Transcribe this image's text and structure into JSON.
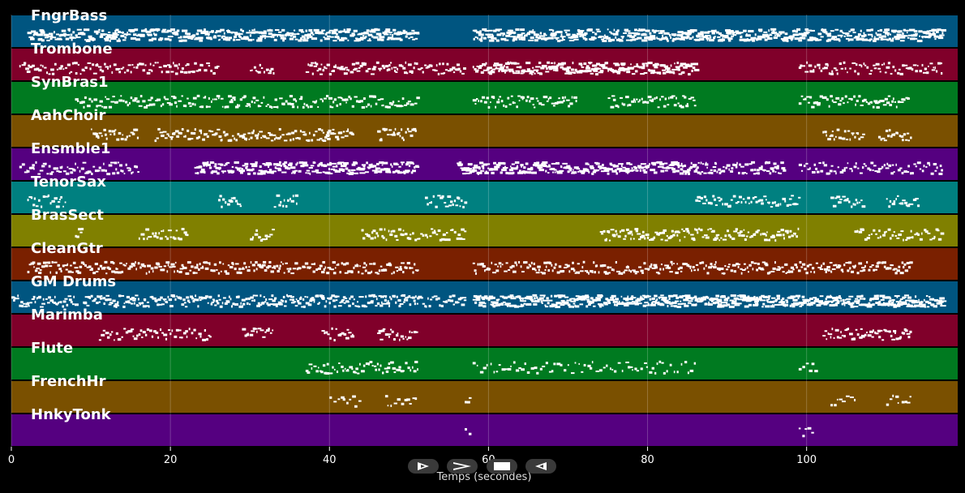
{
  "chart_data": {
    "type": "piano-roll",
    "xlabel": "Temps (secondes)",
    "xlim": [
      0,
      119
    ],
    "xticks": [
      0,
      20,
      40,
      60,
      80,
      100
    ],
    "grid": true,
    "tracks": [
      {
        "name": "FngrBass",
        "color": "#005580",
        "segments": [
          [
            2,
            51,
            9
          ],
          [
            58,
            117,
            10
          ]
        ]
      },
      {
        "name": "Trombone",
        "color": "#80002a",
        "segments": [
          [
            1,
            26,
            5
          ],
          [
            30,
            33,
            5
          ],
          [
            37,
            57,
            6
          ],
          [
            58,
            86,
            9
          ],
          [
            99,
            117,
            5
          ]
        ]
      },
      {
        "name": "SynBras1",
        "color": "#007a20",
        "segments": [
          [
            8,
            51,
            5
          ],
          [
            58,
            71,
            5
          ],
          [
            75,
            86,
            5
          ],
          [
            99,
            113,
            5
          ]
        ]
      },
      {
        "name": "AahChoir",
        "color": "#7a5000",
        "segments": [
          [
            10,
            16,
            5
          ],
          [
            18,
            40,
            6
          ],
          [
            39,
            43,
            6
          ],
          [
            46,
            51,
            6
          ],
          [
            102,
            107,
            6
          ],
          [
            109,
            113,
            6
          ]
        ]
      },
      {
        "name": "Ensmble1",
        "color": "#550080",
        "segments": [
          [
            1,
            16,
            5
          ],
          [
            23,
            51,
            9
          ],
          [
            56,
            86,
            9
          ],
          [
            86,
            97,
            8
          ],
          [
            99,
            117,
            5
          ]
        ]
      },
      {
        "name": "TenorSax",
        "color": "#008080",
        "segments": [
          [
            2,
            7,
            5
          ],
          [
            26,
            29,
            5
          ],
          [
            33,
            36,
            5
          ],
          [
            52,
            57,
            5
          ],
          [
            86,
            99,
            5
          ],
          [
            103,
            107,
            5
          ],
          [
            110,
            114,
            5
          ]
        ]
      },
      {
        "name": "BrasSect",
        "color": "#808000",
        "segments": [
          [
            8,
            9,
            5
          ],
          [
            16,
            22,
            5
          ],
          [
            30,
            33,
            5
          ],
          [
            44,
            57,
            5
          ],
          [
            74,
            99,
            6
          ],
          [
            106,
            117,
            5
          ]
        ]
      },
      {
        "name": "CleanGtr",
        "color": "#7a2000",
        "segments": [
          [
            2,
            51,
            6
          ],
          [
            58,
            113,
            6
          ]
        ]
      },
      {
        "name": "GM Drums",
        "color": "#005580",
        "segments": [
          [
            0,
            8,
            7
          ],
          [
            9,
            51,
            8
          ],
          [
            51,
            57,
            6
          ],
          [
            58,
            117,
            11
          ]
        ]
      },
      {
        "name": "Marimba",
        "color": "#80002a",
        "segments": [
          [
            11,
            25,
            5
          ],
          [
            29,
            33,
            5
          ],
          [
            39,
            43,
            5
          ],
          [
            46,
            51,
            5
          ],
          [
            102,
            113,
            6
          ]
        ]
      },
      {
        "name": "Flute",
        "color": "#007a20",
        "segments": [
          [
            37,
            51,
            5
          ],
          [
            58,
            86,
            3
          ],
          [
            99,
            101,
            3
          ]
        ]
      },
      {
        "name": "FrenchHr",
        "color": "#7a5000",
        "segments": [
          [
            40,
            44,
            3
          ],
          [
            47,
            51,
            3
          ],
          [
            57,
            58,
            3
          ],
          [
            103,
            106,
            3
          ],
          [
            110,
            113,
            3
          ]
        ]
      },
      {
        "name": "HnkyTonk",
        "color": "#550080",
        "segments": [
          [
            57,
            58,
            3
          ],
          [
            99,
            101,
            3
          ]
        ]
      }
    ]
  },
  "transport": {
    "play_icon": "play-outline-icon",
    "forward_icon": "forward-chevron-icon",
    "stop_icon": "stop-square-icon",
    "rewind_icon": "rewind-outline-icon"
  }
}
